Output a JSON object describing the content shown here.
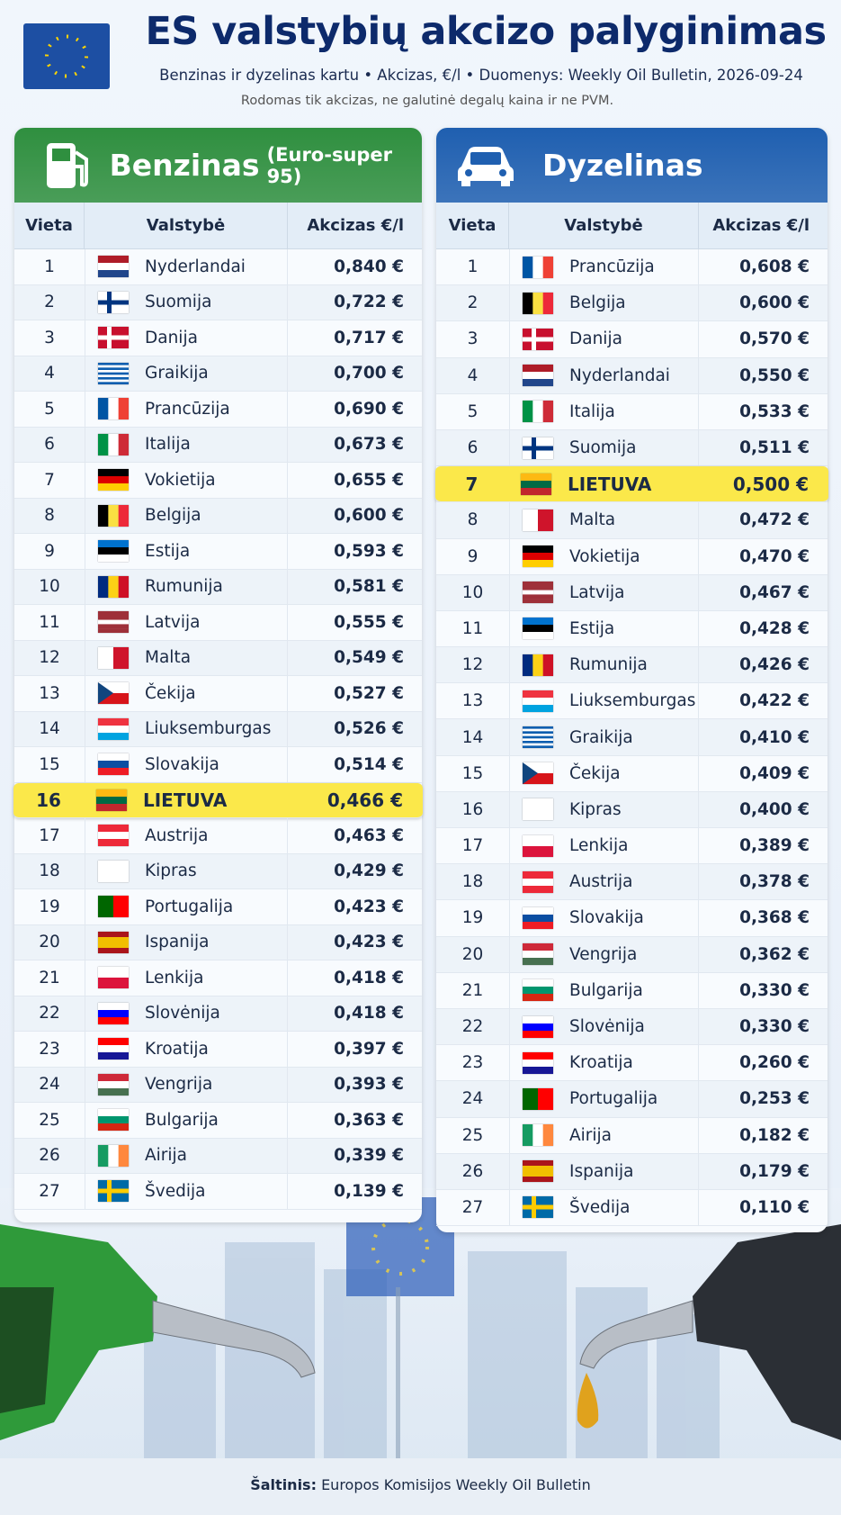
{
  "header": {
    "title": "ES valstybių akcizo palyginimas",
    "subtitle": "Benzinas ir dyzelinas kartu • Akcizas, €/l • Duomenys: Weekly Oil Bulletin, 2026-09-24",
    "note": "Rodomas tik akcizas, ne galutinė degalų kaina ir ne PVM."
  },
  "panels": [
    {
      "title": "Benzinas",
      "subtitle": "(Euro-super 95)",
      "color": "#2f8f3f",
      "columns": [
        "Vieta",
        "Valstybė",
        "Akcizas €/l"
      ],
      "rows": [
        {
          "rank": 1,
          "country": "Nyderlandai",
          "excise": "0,840 €"
        },
        {
          "rank": 2,
          "country": "Suomija",
          "excise": "0,722 €"
        },
        {
          "rank": 3,
          "country": "Danija",
          "excise": "0,717 €"
        },
        {
          "rank": 4,
          "country": "Graikija",
          "excise": "0,700 €"
        },
        {
          "rank": 5,
          "country": "Prancūzija",
          "excise": "0,690 €"
        },
        {
          "rank": 6,
          "country": "Italija",
          "excise": "0,673 €"
        },
        {
          "rank": 7,
          "country": "Vokietija",
          "excise": "0,655 €"
        },
        {
          "rank": 8,
          "country": "Belgija",
          "excise": "0,600 €"
        },
        {
          "rank": 9,
          "country": "Estija",
          "excise": "0,593 €"
        },
        {
          "rank": 10,
          "country": "Rumunija",
          "excise": "0,581 €"
        },
        {
          "rank": 11,
          "country": "Latvija",
          "excise": "0,555 €"
        },
        {
          "rank": 12,
          "country": "Malta",
          "excise": "0,549 €"
        },
        {
          "rank": 13,
          "country": "Čekija",
          "excise": "0,527 €"
        },
        {
          "rank": 14,
          "country": "Liuksemburgas",
          "excise": "0,526 €"
        },
        {
          "rank": 15,
          "country": "Slovakija",
          "excise": "0,514 €"
        },
        {
          "rank": 16,
          "country": "LIETUVA",
          "excise": "0,466 €",
          "highlight": true
        },
        {
          "rank": 17,
          "country": "Austrija",
          "excise": "0,463 €"
        },
        {
          "rank": 18,
          "country": "Kipras",
          "excise": "0,429 €"
        },
        {
          "rank": 19,
          "country": "Portugalija",
          "excise": "0,423 €"
        },
        {
          "rank": 20,
          "country": "Ispanija",
          "excise": "0,423 €"
        },
        {
          "rank": 21,
          "country": "Lenkija",
          "excise": "0,418 €"
        },
        {
          "rank": 22,
          "country": "Slovėnija",
          "excise": "0,418 €"
        },
        {
          "rank": 23,
          "country": "Kroatija",
          "excise": "0,397 €"
        },
        {
          "rank": 24,
          "country": "Vengrija",
          "excise": "0,393 €"
        },
        {
          "rank": 25,
          "country": "Bulgarija",
          "excise": "0,363 €"
        },
        {
          "rank": 26,
          "country": "Airija",
          "excise": "0,339 €"
        },
        {
          "rank": 27,
          "country": "Švedija",
          "excise": "0,139 €"
        }
      ]
    },
    {
      "title": "Dyzelinas",
      "color": "#1f5fb0",
      "columns": [
        "Vieta",
        "Valstybė",
        "Akcizas €/l"
      ],
      "rows": [
        {
          "rank": 1,
          "country": "Prancūzija",
          "excise": "0,608 €"
        },
        {
          "rank": 2,
          "country": "Belgija",
          "excise": "0,600 €"
        },
        {
          "rank": 3,
          "country": "Danija",
          "excise": "0,570 €"
        },
        {
          "rank": 4,
          "country": "Nyderlandai",
          "excise": "0,550 €"
        },
        {
          "rank": 5,
          "country": "Italija",
          "excise": "0,533 €"
        },
        {
          "rank": 6,
          "country": "Suomija",
          "excise": "0,511 €"
        },
        {
          "rank": 7,
          "country": "LIETUVA",
          "excise": "0,500 €",
          "highlight": true
        },
        {
          "rank": 8,
          "country": "Malta",
          "excise": "0,472 €"
        },
        {
          "rank": 9,
          "country": "Vokietija",
          "excise": "0,470 €"
        },
        {
          "rank": 10,
          "country": "Latvija",
          "excise": "0,467 €"
        },
        {
          "rank": 11,
          "country": "Estija",
          "excise": "0,428 €"
        },
        {
          "rank": 12,
          "country": "Rumunija",
          "excise": "0,426 €"
        },
        {
          "rank": 13,
          "country": "Liuksemburgas",
          "excise": "0,422 €"
        },
        {
          "rank": 14,
          "country": "Graikija",
          "excise": "0,410 €"
        },
        {
          "rank": 15,
          "country": "Čekija",
          "excise": "0,409 €"
        },
        {
          "rank": 16,
          "country": "Kipras",
          "excise": "0,400 €"
        },
        {
          "rank": 17,
          "country": "Lenkija",
          "excise": "0,389 €"
        },
        {
          "rank": 18,
          "country": "Austrija",
          "excise": "0,378 €"
        },
        {
          "rank": 19,
          "country": "Slovakija",
          "excise": "0,368 €"
        },
        {
          "rank": 20,
          "country": "Vengrija",
          "excise": "0,362 €"
        },
        {
          "rank": 21,
          "country": "Bulgarija",
          "excise": "0,330 €"
        },
        {
          "rank": 22,
          "country": "Slovėnija",
          "excise": "0,330 €"
        },
        {
          "rank": 23,
          "country": "Kroatija",
          "excise": "0,260 €"
        },
        {
          "rank": 24,
          "country": "Portugalija",
          "excise": "0,253 €"
        },
        {
          "rank": 25,
          "country": "Airija",
          "excise": "0,182 €"
        },
        {
          "rank": 26,
          "country": "Ispanija",
          "excise": "0,179 €"
        },
        {
          "rank": 27,
          "country": "Švedija",
          "excise": "0,110 €"
        }
      ]
    }
  ],
  "flags": {
    "Nyderlandai": {
      "stripes": "h",
      "colors": [
        "#AE1C28",
        "#ffffff",
        "#21468B"
      ]
    },
    "Suomija": {
      "cross": [
        "#ffffff",
        "#003580"
      ]
    },
    "Danija": {
      "cross": [
        "#C8102E",
        "#ffffff"
      ]
    },
    "Graikija": {
      "stripes": "h",
      "colors": [
        "#0D5EAF",
        "#ffffff",
        "#0D5EAF",
        "#ffffff",
        "#0D5EAF",
        "#ffffff",
        "#0D5EAF",
        "#ffffff",
        "#0D5EAF"
      ]
    },
    "Prancūzija": {
      "stripes": "v",
      "colors": [
        "#0055A4",
        "#ffffff",
        "#EF4135"
      ]
    },
    "Italija": {
      "stripes": "v",
      "colors": [
        "#009246",
        "#ffffff",
        "#CE2B37"
      ]
    },
    "Vokietija": {
      "stripes": "h",
      "colors": [
        "#000000",
        "#DD0000",
        "#FFCE00"
      ]
    },
    "Belgija": {
      "stripes": "v",
      "colors": [
        "#000000",
        "#FAE042",
        "#ED2939"
      ]
    },
    "Estija": {
      "stripes": "h",
      "colors": [
        "#0072CE",
        "#000000",
        "#ffffff"
      ]
    },
    "Rumunija": {
      "stripes": "v",
      "colors": [
        "#002B7F",
        "#FCD116",
        "#CE1126"
      ]
    },
    "Latvija": {
      "stripes": "h",
      "colors": [
        "#9E3039",
        "#9E3039",
        "#ffffff",
        "#9E3039",
        "#9E3039"
      ]
    },
    "Malta": {
      "stripes": "v",
      "colors": [
        "#ffffff",
        "#CF142B"
      ]
    },
    "Čekija": {
      "stripes": "h",
      "colors": [
        "#ffffff",
        "#D7141A"
      ],
      "triangle": "#11457E"
    },
    "Liuksemburgas": {
      "stripes": "h",
      "colors": [
        "#EF3340",
        "#ffffff",
        "#00A3E0"
      ]
    },
    "Slovakija": {
      "stripes": "h",
      "colors": [
        "#ffffff",
        "#0B4EA2",
        "#EE1C25"
      ]
    },
    "LIETUVA": {
      "stripes": "h",
      "colors": [
        "#FDB913",
        "#006A44",
        "#C1272D"
      ]
    },
    "Austrija": {
      "stripes": "h",
      "colors": [
        "#ED2939",
        "#ffffff",
        "#ED2939"
      ]
    },
    "Kipras": {
      "stripes": "h",
      "colors": [
        "#ffffff"
      ]
    },
    "Portugalija": {
      "stripes": "v",
      "colors": [
        "#006600",
        "#FF0000"
      ]
    },
    "Ispanija": {
      "stripes": "h",
      "colors": [
        "#AA151B",
        "#F1BF00",
        "#F1BF00",
        "#AA151B"
      ]
    },
    "Lenkija": {
      "stripes": "h",
      "colors": [
        "#ffffff",
        "#DC143C"
      ]
    },
    "Slovėnija": {
      "stripes": "h",
      "colors": [
        "#ffffff",
        "#0000FF",
        "#FF0000"
      ]
    },
    "Kroatija": {
      "stripes": "h",
      "colors": [
        "#FF0000",
        "#ffffff",
        "#171796"
      ]
    },
    "Vengrija": {
      "stripes": "h",
      "colors": [
        "#CE2939",
        "#ffffff",
        "#477050"
      ]
    },
    "Bulgarija": {
      "stripes": "h",
      "colors": [
        "#ffffff",
        "#00966E",
        "#D62612"
      ]
    },
    "Airija": {
      "stripes": "v",
      "colors": [
        "#169B62",
        "#ffffff",
        "#FF883E"
      ]
    },
    "Švedija": {
      "cross": [
        "#006AA7",
        "#FECC00"
      ]
    }
  },
  "footer": {
    "label": "Šaltinis:",
    "text": "Europos Komisijos Weekly Oil Bulletin"
  }
}
